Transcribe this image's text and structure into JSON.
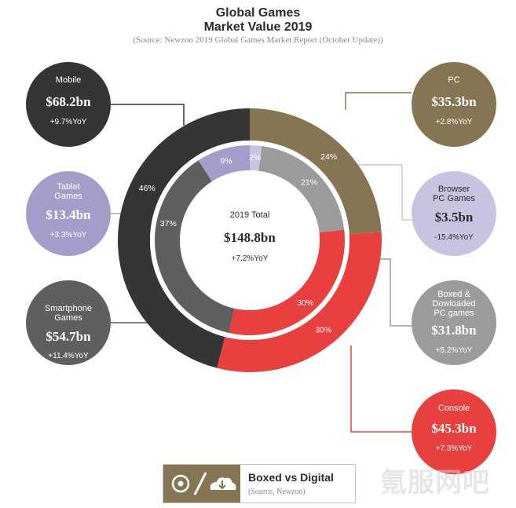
{
  "title_line1": "Global Games",
  "title_line2": "Market Value 2019",
  "source": "(Source: Newzoo 2019 Global Games Market Report (October Update))",
  "colors": {
    "mobile": "#353634",
    "pc": "#857552",
    "console": "#e8403f",
    "tablet": "#a49dc9",
    "smartphone": "#5f5f5f",
    "browser": "#c8c3e1",
    "boxed": "#9b9b9b"
  },
  "chart_data": {
    "type": "donut",
    "outer": {
      "slices": [
        {
          "name": "PC",
          "percent": 24,
          "label": "24%"
        },
        {
          "name": "Console",
          "percent": 30,
          "label": "30%"
        },
        {
          "name": "Mobile",
          "percent": 46,
          "label": "46%"
        }
      ]
    },
    "inner": {
      "slices": [
        {
          "name": "Browser PC Games",
          "percent": 2,
          "label": "2%"
        },
        {
          "name": "Boxed & Dowloaded PC games",
          "percent": 21,
          "label": "21%"
        },
        {
          "name": "Console",
          "percent": 30,
          "label": "30%"
        },
        {
          "name": "Smartphone Games",
          "percent": 37,
          "label": "37%"
        },
        {
          "name": "Tablet Games",
          "percent": 9,
          "label": "9%"
        }
      ]
    },
    "total": {
      "label": "2019 Total",
      "value": "$148.8bn",
      "yoy": "+7.2%YoY"
    }
  },
  "segments": {
    "mobile": {
      "label": "Mobile",
      "value": "$68.2bn",
      "yoy": "+9.7%YoY"
    },
    "tablet": {
      "label1": "Tablet",
      "label2": "Games",
      "value": "$13.4bn",
      "yoy": "+3.3%YoY"
    },
    "smartphone": {
      "label1": "Smartphone",
      "label2": "Games",
      "value": "$54.7bn",
      "yoy": "+11.4%YoY"
    },
    "pc": {
      "label": "PC",
      "value": "$35.3bn",
      "yoy": "+2.8%YoY"
    },
    "browser": {
      "label1": "Browser",
      "label2": "PC Games",
      "value": "$3.5bn",
      "yoy": "-15.4%YoY"
    },
    "boxed": {
      "label1": "Boxed &",
      "label2": "Dowloaded",
      "label3": "PC games",
      "value": "$31.8bn",
      "yoy": "+5.2%YoY"
    },
    "console": {
      "label": "Console",
      "value": "$45.3bn",
      "yoy": "+7.3%YoY"
    }
  },
  "footer": {
    "title": "Boxed vs Digital",
    "source": "(Source, Newzoo)"
  },
  "watermark": "氪服网吧"
}
